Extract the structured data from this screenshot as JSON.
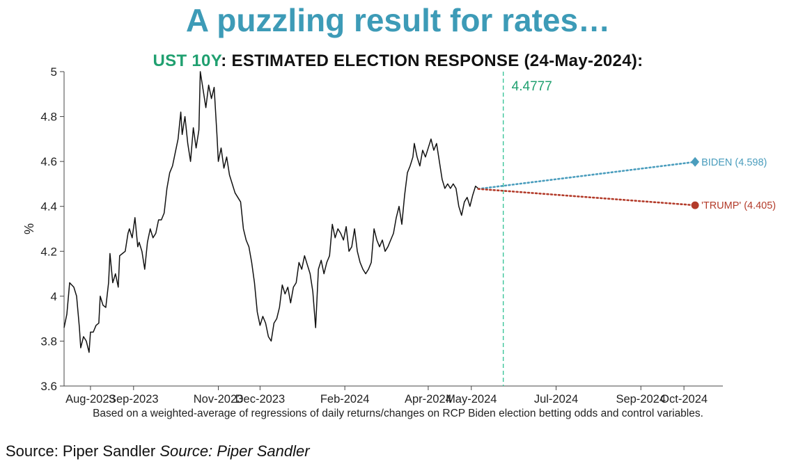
{
  "title": "A puzzling result for rates…",
  "subtitle": {
    "highlight": "UST 10Y",
    "rest": ": ESTIMATED ELECTION RESPONSE (24-May-2024):"
  },
  "footnote": "Based on a weighted-average of regressions of daily returns/changes on RCP Biden election betting odds and control variables.",
  "source": {
    "a": "Source: Piper Sandler",
    "b": "Source: Piper Sandler"
  },
  "colors": {
    "title": "#3d9bb7",
    "highlight": "#20a070",
    "line": "#111111",
    "vline": "#3cc59a",
    "biden": "#4a9dbd",
    "trump": "#b33b2a"
  },
  "chart_data": {
    "type": "line",
    "ylabel": "%",
    "xlabel": "",
    "ylim": [
      3.6,
      5.0
    ],
    "xlim": [
      "2023-07-13",
      "2024-10-29"
    ],
    "yticks": [
      "3.6",
      "3.8",
      "4",
      "4.2",
      "4.4",
      "4.6",
      "4.8",
      "5"
    ],
    "xticks": [
      {
        "label": "Aug-2023",
        "date": "2023-08-01"
      },
      {
        "label": "Sep-2023",
        "date": "2023-09-01"
      },
      {
        "label": "Nov-2023",
        "date": "2023-11-01"
      },
      {
        "label": "Dec-2023",
        "date": "2023-12-01"
      },
      {
        "label": "Feb-2024",
        "date": "2024-01-31"
      },
      {
        "label": "Apr-2024",
        "date": "2024-03-31"
      },
      {
        "label": "May-2024",
        "date": "2024-05-01"
      },
      {
        "label": "Jul-2024",
        "date": "2024-07-01"
      },
      {
        "label": "Sep-2024",
        "date": "2024-08-31"
      },
      {
        "label": "Oct-2024",
        "date": "2024-10-01"
      }
    ],
    "vline": {
      "date": "2024-05-24",
      "label": "4.4777",
      "value": 4.4777
    },
    "series": [
      {
        "values": [
          [
            "2023-07-13",
            3.86
          ],
          [
            "2023-07-15",
            3.92
          ],
          [
            "2023-07-17",
            4.06
          ],
          [
            "2023-07-20",
            4.04
          ],
          [
            "2023-07-22",
            4.0
          ],
          [
            "2023-07-24",
            3.86
          ],
          [
            "2023-07-25",
            3.77
          ],
          [
            "2023-07-27",
            3.82
          ],
          [
            "2023-07-29",
            3.8
          ],
          [
            "2023-07-31",
            3.75
          ],
          [
            "2023-08-01",
            3.84
          ],
          [
            "2023-08-03",
            3.84
          ],
          [
            "2023-08-05",
            3.87
          ],
          [
            "2023-08-07",
            3.88
          ],
          [
            "2023-08-08",
            4.0
          ],
          [
            "2023-08-10",
            3.96
          ],
          [
            "2023-08-12",
            3.95
          ],
          [
            "2023-08-14",
            4.06
          ],
          [
            "2023-08-15",
            4.19
          ],
          [
            "2023-08-17",
            4.06
          ],
          [
            "2023-08-19",
            4.1
          ],
          [
            "2023-08-21",
            4.04
          ],
          [
            "2023-08-22",
            4.18
          ],
          [
            "2023-08-24",
            4.19
          ],
          [
            "2023-08-26",
            4.2
          ],
          [
            "2023-08-28",
            4.28
          ],
          [
            "2023-08-29",
            4.3
          ],
          [
            "2023-08-31",
            4.26
          ],
          [
            "2023-09-02",
            4.35
          ],
          [
            "2023-09-04",
            4.22
          ],
          [
            "2023-09-05",
            4.24
          ],
          [
            "2023-09-07",
            4.2
          ],
          [
            "2023-09-09",
            4.12
          ],
          [
            "2023-09-11",
            4.24
          ],
          [
            "2023-09-13",
            4.3
          ],
          [
            "2023-09-15",
            4.26
          ],
          [
            "2023-09-17",
            4.28
          ],
          [
            "2023-09-19",
            4.34
          ],
          [
            "2023-09-21",
            4.34
          ],
          [
            "2023-09-23",
            4.37
          ],
          [
            "2023-09-25",
            4.48
          ],
          [
            "2023-09-27",
            4.55
          ],
          [
            "2023-09-29",
            4.58
          ],
          [
            "2023-10-01",
            4.64
          ],
          [
            "2023-10-03",
            4.7
          ],
          [
            "2023-10-05",
            4.82
          ],
          [
            "2023-10-06",
            4.72
          ],
          [
            "2023-10-08",
            4.8
          ],
          [
            "2023-10-10",
            4.68
          ],
          [
            "2023-10-12",
            4.6
          ],
          [
            "2023-10-14",
            4.75
          ],
          [
            "2023-10-16",
            4.66
          ],
          [
            "2023-10-18",
            4.74
          ],
          [
            "2023-10-19",
            5.0
          ],
          [
            "2023-10-21",
            4.92
          ],
          [
            "2023-10-23",
            4.84
          ],
          [
            "2023-10-25",
            4.94
          ],
          [
            "2023-10-27",
            4.88
          ],
          [
            "2023-10-29",
            4.93
          ],
          [
            "2023-10-31",
            4.72
          ],
          [
            "2023-11-01",
            4.6
          ],
          [
            "2023-11-03",
            4.66
          ],
          [
            "2023-11-05",
            4.57
          ],
          [
            "2023-11-07",
            4.62
          ],
          [
            "2023-11-09",
            4.54
          ],
          [
            "2023-11-11",
            4.5
          ],
          [
            "2023-11-13",
            4.46
          ],
          [
            "2023-11-15",
            4.44
          ],
          [
            "2023-11-17",
            4.42
          ],
          [
            "2023-11-19",
            4.3
          ],
          [
            "2023-11-21",
            4.25
          ],
          [
            "2023-11-23",
            4.22
          ],
          [
            "2023-11-25",
            4.15
          ],
          [
            "2023-11-27",
            4.06
          ],
          [
            "2023-11-29",
            3.93
          ],
          [
            "2023-12-01",
            3.87
          ],
          [
            "2023-12-03",
            3.91
          ],
          [
            "2023-12-05",
            3.88
          ],
          [
            "2023-12-07",
            3.82
          ],
          [
            "2023-12-09",
            3.8
          ],
          [
            "2023-12-11",
            3.88
          ],
          [
            "2023-12-13",
            3.9
          ],
          [
            "2023-12-15",
            3.95
          ],
          [
            "2023-12-17",
            4.05
          ],
          [
            "2023-12-19",
            4.01
          ],
          [
            "2023-12-21",
            4.04
          ],
          [
            "2023-12-23",
            3.97
          ],
          [
            "2023-12-25",
            4.04
          ],
          [
            "2023-12-27",
            4.06
          ],
          [
            "2023-12-29",
            4.15
          ],
          [
            "2023-12-31",
            4.12
          ],
          [
            "2024-01-02",
            4.18
          ],
          [
            "2024-01-04",
            4.14
          ],
          [
            "2024-01-06",
            4.1
          ],
          [
            "2024-01-08",
            4.02
          ],
          [
            "2024-01-10",
            3.86
          ],
          [
            "2024-01-12",
            4.12
          ],
          [
            "2024-01-14",
            4.16
          ],
          [
            "2024-01-16",
            4.1
          ],
          [
            "2024-01-18",
            4.15
          ],
          [
            "2024-01-20",
            4.18
          ],
          [
            "2024-01-22",
            4.32
          ],
          [
            "2024-01-24",
            4.26
          ],
          [
            "2024-01-26",
            4.3
          ],
          [
            "2024-01-28",
            4.28
          ],
          [
            "2024-01-30",
            4.25
          ],
          [
            "2024-02-01",
            4.31
          ],
          [
            "2024-02-03",
            4.2
          ],
          [
            "2024-02-05",
            4.22
          ],
          [
            "2024-02-07",
            4.3
          ],
          [
            "2024-02-09",
            4.2
          ],
          [
            "2024-02-11",
            4.15
          ],
          [
            "2024-02-13",
            4.12
          ],
          [
            "2024-02-15",
            4.1
          ],
          [
            "2024-02-17",
            4.12
          ],
          [
            "2024-02-19",
            4.15
          ],
          [
            "2024-02-21",
            4.3
          ],
          [
            "2024-02-23",
            4.25
          ],
          [
            "2024-02-25",
            4.22
          ],
          [
            "2024-02-27",
            4.25
          ],
          [
            "2024-02-29",
            4.2
          ],
          [
            "2024-03-02",
            4.22
          ],
          [
            "2024-03-04",
            4.25
          ],
          [
            "2024-03-06",
            4.28
          ],
          [
            "2024-03-08",
            4.35
          ],
          [
            "2024-03-10",
            4.4
          ],
          [
            "2024-03-12",
            4.32
          ],
          [
            "2024-03-14",
            4.45
          ],
          [
            "2024-03-16",
            4.55
          ],
          [
            "2024-03-18",
            4.58
          ],
          [
            "2024-03-20",
            4.62
          ],
          [
            "2024-03-21",
            4.68
          ],
          [
            "2024-03-23",
            4.62
          ],
          [
            "2024-03-25",
            4.58
          ],
          [
            "2024-03-27",
            4.65
          ],
          [
            "2024-03-29",
            4.62
          ],
          [
            "2024-03-31",
            4.66
          ],
          [
            "2024-04-02",
            4.7
          ],
          [
            "2024-04-04",
            4.65
          ],
          [
            "2024-04-06",
            4.68
          ],
          [
            "2024-04-08",
            4.6
          ],
          [
            "2024-04-10",
            4.52
          ],
          [
            "2024-04-12",
            4.48
          ],
          [
            "2024-04-14",
            4.5
          ],
          [
            "2024-04-16",
            4.48
          ],
          [
            "2024-04-18",
            4.5
          ],
          [
            "2024-04-20",
            4.48
          ],
          [
            "2024-04-22",
            4.4
          ],
          [
            "2024-04-24",
            4.36
          ],
          [
            "2024-04-26",
            4.42
          ],
          [
            "2024-04-28",
            4.44
          ],
          [
            "2024-04-30",
            4.4
          ],
          [
            "2024-05-02",
            4.45
          ],
          [
            "2024-05-04",
            4.49
          ],
          [
            "2024-05-06",
            4.48
          ]
        ]
      }
    ],
    "projections": [
      {
        "name": "BIDEN",
        "label": "BIDEN (4.598)",
        "start": [
          "2024-05-06",
          4.4777
        ],
        "end": [
          "2024-10-09",
          4.598
        ],
        "marker": "diamond"
      },
      {
        "name": "'TRUMP'",
        "label": "'TRUMP' (4.405)",
        "start": [
          "2024-05-06",
          4.4777
        ],
        "end": [
          "2024-10-09",
          4.405
        ],
        "marker": "circle"
      }
    ]
  }
}
